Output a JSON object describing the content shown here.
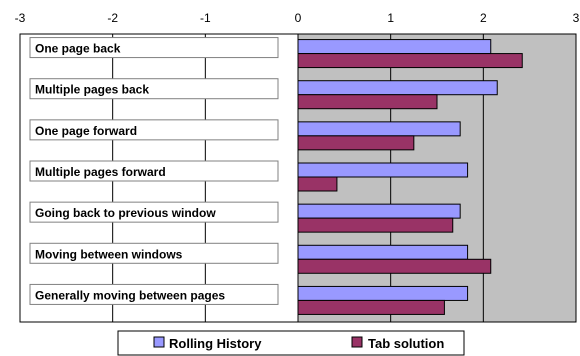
{
  "chart_data": {
    "type": "bar",
    "orientation": "horizontal",
    "xlim": [
      -3,
      3
    ],
    "x_ticks": [
      "-3",
      "-2",
      "-1",
      "0",
      "1",
      "2",
      "3"
    ],
    "categories": [
      "One page back",
      "Multiple pages back",
      "One page forward",
      "Multiple pages forward",
      "Going back to previous window",
      "Moving between windows",
      "Generally moving between pages"
    ],
    "series": [
      {
        "name": "Rolling History",
        "color": "#9999ff",
        "values": [
          2.08,
          2.15,
          1.75,
          1.83,
          1.75,
          1.83,
          1.83
        ]
      },
      {
        "name": "Tab solution",
        "color": "#993366",
        "values": [
          2.42,
          1.5,
          1.25,
          0.42,
          1.67,
          2.08,
          1.58
        ]
      }
    ],
    "grid": true,
    "plot_background": "#c0c0c0",
    "legend_position": "bottom"
  }
}
